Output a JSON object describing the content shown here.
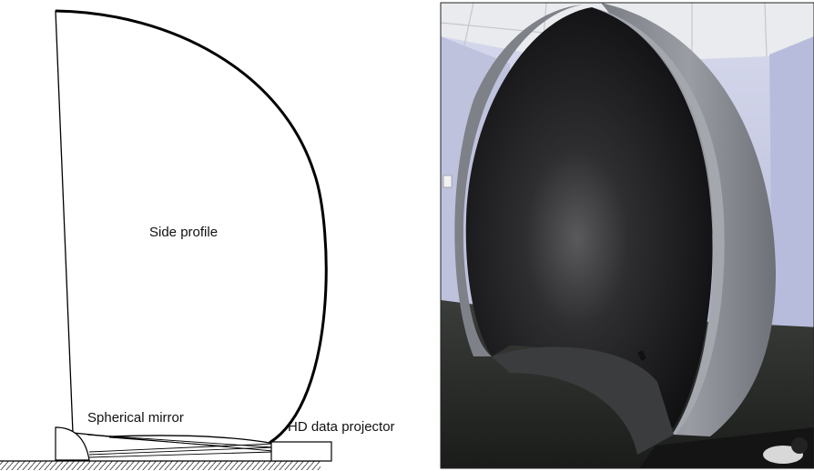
{
  "diagram": {
    "labels": {
      "side_profile": "Side profile",
      "spherical_mirror": "Spherical mirror",
      "projector": "HD data projector"
    }
  },
  "photo": {
    "subject": "dome-display",
    "colors": {
      "wall": "#c9cde6",
      "dome_interior": "#1b1b1d",
      "dome_shell": "#8c8f96",
      "carpet": "#2a2d2a",
      "ceiling": "#e6e8ea"
    }
  }
}
